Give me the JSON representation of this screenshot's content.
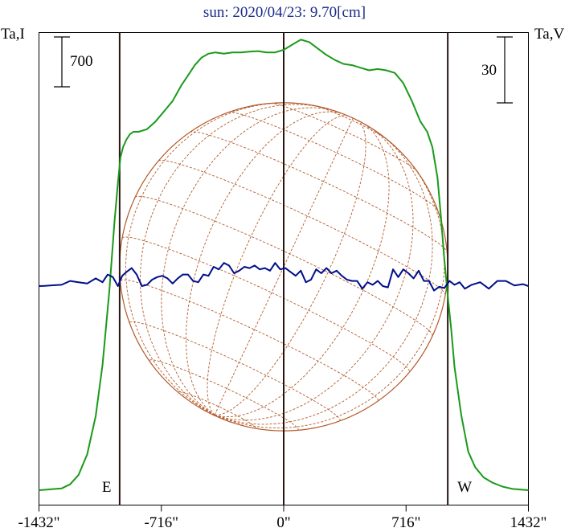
{
  "title": "sun: 2020/04/23: 9.70[cm]",
  "chart_data": {
    "type": "line",
    "title": "sun: 2020/04/23: 9.70[cm]",
    "xlim": [
      -1432,
      1432
    ],
    "x_ticks": [
      -1432,
      -716,
      0,
      716,
      1432
    ],
    "x_tick_labels": [
      "-1432\"",
      "-716\"",
      "0\"",
      "716\"",
      "1432\""
    ],
    "left_axis_label": "Ta,I",
    "right_axis_label": "Ta,V",
    "left_scale_bar": "700",
    "right_scale_bar": "30",
    "limb_markers": [
      {
        "label": "E",
        "x": -960
      },
      {
        "label": "W",
        "x": 960
      }
    ],
    "center_marker": 0,
    "solar_radius_arcsec": 960,
    "solar_disk": {
      "b0_deg": -5.0,
      "p_deg": -25.0
    },
    "series": [
      {
        "name": "Ta,I",
        "color": "#1a9a1a",
        "axis": "left",
        "x": [
          -1432,
          -1300,
          -1250,
          -1200,
          -1150,
          -1100,
          -1060,
          -1020,
          -990,
          -970,
          -955,
          -940,
          -920,
          -900,
          -880,
          -850,
          -800,
          -750,
          -700,
          -650,
          -600,
          -560,
          -520,
          -480,
          -440,
          -400,
          -350,
          -300,
          -250,
          -200,
          -150,
          -100,
          -50,
          0,
          50,
          100,
          150,
          200,
          250,
          300,
          350,
          400,
          450,
          500,
          550,
          600,
          650,
          700,
          750,
          800,
          840,
          870,
          900,
          920,
          940,
          960,
          980,
          1000,
          1040,
          1080,
          1120,
          1170,
          1220,
          1280,
          1340,
          1432
        ],
        "y": [
          0,
          7,
          23,
          60,
          140,
          290,
          490,
          780,
          1050,
          1200,
          1300,
          1340,
          1370,
          1390,
          1400,
          1400,
          1410,
          1440,
          1480,
          1520,
          1580,
          1620,
          1660,
          1690,
          1705,
          1710,
          1705,
          1710,
          1710,
          1713,
          1715,
          1710,
          1710,
          1720,
          1740,
          1760,
          1750,
          1725,
          1700,
          1680,
          1665,
          1660,
          1650,
          1640,
          1645,
          1640,
          1630,
          1590,
          1520,
          1440,
          1400,
          1340,
          1220,
          1070,
          900,
          760,
          630,
          480,
          290,
          150,
          90,
          50,
          30,
          14,
          5,
          0
        ]
      },
      {
        "name": "Ta,V",
        "color": "#000e8c",
        "axis": "right",
        "x": [
          -1432,
          -1400,
          -1350,
          -1300,
          -1250,
          -1200,
          -1150,
          -1100,
          -1060,
          -1030,
          -1000,
          -970,
          -945,
          -920,
          -890,
          -860,
          -830,
          -800,
          -770,
          -740,
          -710,
          -680,
          -650,
          -620,
          -590,
          -560,
          -530,
          -500,
          -470,
          -440,
          -410,
          -380,
          -350,
          -320,
          -290,
          -260,
          -230,
          -200,
          -170,
          -140,
          -110,
          -80,
          -50,
          -20,
          10,
          40,
          70,
          100,
          130,
          160,
          190,
          220,
          250,
          280,
          310,
          340,
          370,
          400,
          430,
          460,
          490,
          520,
          550,
          580,
          610,
          640,
          670,
          700,
          730,
          760,
          790,
          820,
          850,
          880,
          910,
          940,
          970,
          1000,
          1030,
          1060,
          1100,
          1150,
          1200,
          1250,
          1300,
          1350,
          1400,
          1432
        ],
        "y": [
          0,
          0.2,
          0.6,
          1.0,
          4.0,
          3.0,
          2.0,
          6.0,
          3.0,
          9.0,
          7.0,
          0.0,
          8.0,
          11.0,
          14.0,
          9.0,
          0.0,
          1.0,
          5.0,
          7.0,
          8.0,
          6.0,
          2.0,
          6.0,
          9.0,
          9.0,
          4.0,
          3.0,
          9.0,
          8.0,
          15.0,
          13.0,
          18.0,
          16.0,
          10.0,
          12.0,
          15.0,
          14.0,
          16.0,
          13.0,
          14.0,
          12.0,
          18.0,
          13.0,
          14.0,
          11.0,
          8.0,
          12.0,
          3.0,
          5.0,
          13.0,
          10.0,
          14.0,
          10.0,
          12.0,
          8.0,
          5.0,
          4.0,
          4.0,
          -2.0,
          3.0,
          1.0,
          4.0,
          0.0,
          -1.0,
          13.0,
          7.0,
          13.0,
          10.0,
          6.0,
          12.0,
          4.0,
          4.0,
          -3.5,
          -0.5,
          -1.5,
          4.0,
          1.0,
          3.0,
          -2.0,
          1.0,
          3.0,
          -2.0,
          4.0,
          4.0,
          0.5,
          1.5,
          0.0
        ]
      }
    ],
    "grid": false
  }
}
